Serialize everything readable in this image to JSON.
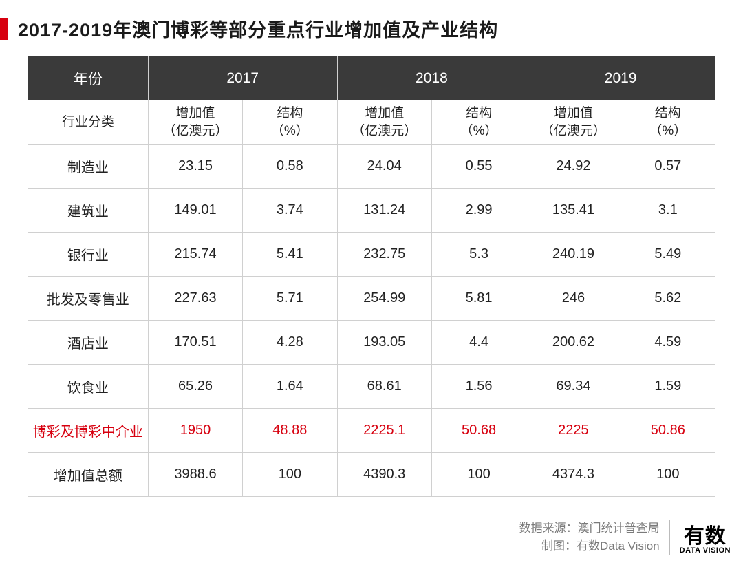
{
  "title": "2017-2019年澳门博彩等部分重点行业增加值及产业结构",
  "colors": {
    "accent": "#d7000f",
    "header_bg": "#3a3a3a",
    "header_fg": "#ffffff",
    "border": "#d0d0d0",
    "text": "#222222",
    "muted": "#7a7a7a"
  },
  "table": {
    "type": "table",
    "year_header_label": "年份",
    "years": [
      "2017",
      "2018",
      "2019"
    ],
    "category_header_label": "行业分类",
    "value_sub_label": "增加值\n（亿澳元）",
    "struct_sub_label": "结构\n（%）",
    "highlight_row_index": 6,
    "rows": [
      {
        "label": "制造业",
        "cells": [
          "23.15",
          "0.58",
          "24.04",
          "0.55",
          "24.92",
          "0.57"
        ]
      },
      {
        "label": "建筑业",
        "cells": [
          "149.01",
          "3.74",
          "131.24",
          "2.99",
          "135.41",
          "3.1"
        ]
      },
      {
        "label": "银行业",
        "cells": [
          "215.74",
          "5.41",
          "232.75",
          "5.3",
          "240.19",
          "5.49"
        ]
      },
      {
        "label": "批发及零售业",
        "cells": [
          "227.63",
          "5.71",
          "254.99",
          "5.81",
          "246",
          "5.62"
        ]
      },
      {
        "label": "酒店业",
        "cells": [
          "170.51",
          "4.28",
          "193.05",
          "4.4",
          "200.62",
          "4.59"
        ]
      },
      {
        "label": "饮食业",
        "cells": [
          "65.26",
          "1.64",
          "68.61",
          "1.56",
          "69.34",
          "1.59"
        ]
      },
      {
        "label": "博彩及博彩中介业",
        "cells": [
          "1950",
          "48.88",
          "2225.1",
          "50.68",
          "2225",
          "50.86"
        ]
      },
      {
        "label": "增加值总额",
        "cells": [
          "3988.6",
          "100",
          "4390.3",
          "100",
          "4374.3",
          "100"
        ]
      }
    ]
  },
  "footer": {
    "source_label": "数据来源：",
    "source_value": "澳门统计普查局",
    "maker_label": "制图：",
    "maker_value": "有数Data Vision",
    "logo_main": "有数",
    "logo_sub": "DATA VISION"
  }
}
